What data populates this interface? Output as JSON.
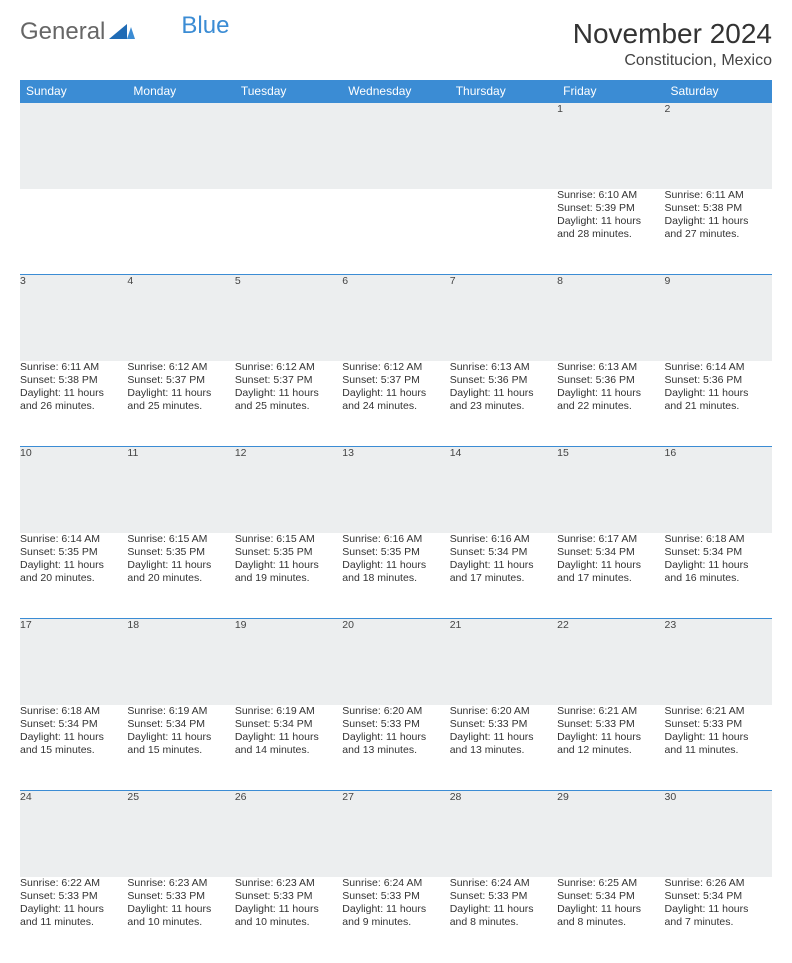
{
  "logo": {
    "general": "General",
    "blue": "Blue"
  },
  "title": "November 2024",
  "location": "Constitucion, Mexico",
  "colors": {
    "header_bg": "#3b8cd4",
    "header_text": "#ffffff",
    "daynum_bg": "#eceeef",
    "border": "#3b8cd4",
    "page_bg": "#ffffff",
    "text": "#333333"
  },
  "weekdays": [
    "Sunday",
    "Monday",
    "Tuesday",
    "Wednesday",
    "Thursday",
    "Friday",
    "Saturday"
  ],
  "weeks": [
    [
      null,
      null,
      null,
      null,
      null,
      {
        "n": "1",
        "sunrise": "Sunrise: 6:10 AM",
        "sunset": "Sunset: 5:39 PM",
        "day1": "Daylight: 11 hours",
        "day2": "and 28 minutes."
      },
      {
        "n": "2",
        "sunrise": "Sunrise: 6:11 AM",
        "sunset": "Sunset: 5:38 PM",
        "day1": "Daylight: 11 hours",
        "day2": "and 27 minutes."
      }
    ],
    [
      {
        "n": "3",
        "sunrise": "Sunrise: 6:11 AM",
        "sunset": "Sunset: 5:38 PM",
        "day1": "Daylight: 11 hours",
        "day2": "and 26 minutes."
      },
      {
        "n": "4",
        "sunrise": "Sunrise: 6:12 AM",
        "sunset": "Sunset: 5:37 PM",
        "day1": "Daylight: 11 hours",
        "day2": "and 25 minutes."
      },
      {
        "n": "5",
        "sunrise": "Sunrise: 6:12 AM",
        "sunset": "Sunset: 5:37 PM",
        "day1": "Daylight: 11 hours",
        "day2": "and 25 minutes."
      },
      {
        "n": "6",
        "sunrise": "Sunrise: 6:12 AM",
        "sunset": "Sunset: 5:37 PM",
        "day1": "Daylight: 11 hours",
        "day2": "and 24 minutes."
      },
      {
        "n": "7",
        "sunrise": "Sunrise: 6:13 AM",
        "sunset": "Sunset: 5:36 PM",
        "day1": "Daylight: 11 hours",
        "day2": "and 23 minutes."
      },
      {
        "n": "8",
        "sunrise": "Sunrise: 6:13 AM",
        "sunset": "Sunset: 5:36 PM",
        "day1": "Daylight: 11 hours",
        "day2": "and 22 minutes."
      },
      {
        "n": "9",
        "sunrise": "Sunrise: 6:14 AM",
        "sunset": "Sunset: 5:36 PM",
        "day1": "Daylight: 11 hours",
        "day2": "and 21 minutes."
      }
    ],
    [
      {
        "n": "10",
        "sunrise": "Sunrise: 6:14 AM",
        "sunset": "Sunset: 5:35 PM",
        "day1": "Daylight: 11 hours",
        "day2": "and 20 minutes."
      },
      {
        "n": "11",
        "sunrise": "Sunrise: 6:15 AM",
        "sunset": "Sunset: 5:35 PM",
        "day1": "Daylight: 11 hours",
        "day2": "and 20 minutes."
      },
      {
        "n": "12",
        "sunrise": "Sunrise: 6:15 AM",
        "sunset": "Sunset: 5:35 PM",
        "day1": "Daylight: 11 hours",
        "day2": "and 19 minutes."
      },
      {
        "n": "13",
        "sunrise": "Sunrise: 6:16 AM",
        "sunset": "Sunset: 5:35 PM",
        "day1": "Daylight: 11 hours",
        "day2": "and 18 minutes."
      },
      {
        "n": "14",
        "sunrise": "Sunrise: 6:16 AM",
        "sunset": "Sunset: 5:34 PM",
        "day1": "Daylight: 11 hours",
        "day2": "and 17 minutes."
      },
      {
        "n": "15",
        "sunrise": "Sunrise: 6:17 AM",
        "sunset": "Sunset: 5:34 PM",
        "day1": "Daylight: 11 hours",
        "day2": "and 17 minutes."
      },
      {
        "n": "16",
        "sunrise": "Sunrise: 6:18 AM",
        "sunset": "Sunset: 5:34 PM",
        "day1": "Daylight: 11 hours",
        "day2": "and 16 minutes."
      }
    ],
    [
      {
        "n": "17",
        "sunrise": "Sunrise: 6:18 AM",
        "sunset": "Sunset: 5:34 PM",
        "day1": "Daylight: 11 hours",
        "day2": "and 15 minutes."
      },
      {
        "n": "18",
        "sunrise": "Sunrise: 6:19 AM",
        "sunset": "Sunset: 5:34 PM",
        "day1": "Daylight: 11 hours",
        "day2": "and 15 minutes."
      },
      {
        "n": "19",
        "sunrise": "Sunrise: 6:19 AM",
        "sunset": "Sunset: 5:34 PM",
        "day1": "Daylight: 11 hours",
        "day2": "and 14 minutes."
      },
      {
        "n": "20",
        "sunrise": "Sunrise: 6:20 AM",
        "sunset": "Sunset: 5:33 PM",
        "day1": "Daylight: 11 hours",
        "day2": "and 13 minutes."
      },
      {
        "n": "21",
        "sunrise": "Sunrise: 6:20 AM",
        "sunset": "Sunset: 5:33 PM",
        "day1": "Daylight: 11 hours",
        "day2": "and 13 minutes."
      },
      {
        "n": "22",
        "sunrise": "Sunrise: 6:21 AM",
        "sunset": "Sunset: 5:33 PM",
        "day1": "Daylight: 11 hours",
        "day2": "and 12 minutes."
      },
      {
        "n": "23",
        "sunrise": "Sunrise: 6:21 AM",
        "sunset": "Sunset: 5:33 PM",
        "day1": "Daylight: 11 hours",
        "day2": "and 11 minutes."
      }
    ],
    [
      {
        "n": "24",
        "sunrise": "Sunrise: 6:22 AM",
        "sunset": "Sunset: 5:33 PM",
        "day1": "Daylight: 11 hours",
        "day2": "and 11 minutes."
      },
      {
        "n": "25",
        "sunrise": "Sunrise: 6:23 AM",
        "sunset": "Sunset: 5:33 PM",
        "day1": "Daylight: 11 hours",
        "day2": "and 10 minutes."
      },
      {
        "n": "26",
        "sunrise": "Sunrise: 6:23 AM",
        "sunset": "Sunset: 5:33 PM",
        "day1": "Daylight: 11 hours",
        "day2": "and 10 minutes."
      },
      {
        "n": "27",
        "sunrise": "Sunrise: 6:24 AM",
        "sunset": "Sunset: 5:33 PM",
        "day1": "Daylight: 11 hours",
        "day2": "and 9 minutes."
      },
      {
        "n": "28",
        "sunrise": "Sunrise: 6:24 AM",
        "sunset": "Sunset: 5:33 PM",
        "day1": "Daylight: 11 hours",
        "day2": "and 8 minutes."
      },
      {
        "n": "29",
        "sunrise": "Sunrise: 6:25 AM",
        "sunset": "Sunset: 5:34 PM",
        "day1": "Daylight: 11 hours",
        "day2": "and 8 minutes."
      },
      {
        "n": "30",
        "sunrise": "Sunrise: 6:26 AM",
        "sunset": "Sunset: 5:34 PM",
        "day1": "Daylight: 11 hours",
        "day2": "and 7 minutes."
      }
    ]
  ]
}
